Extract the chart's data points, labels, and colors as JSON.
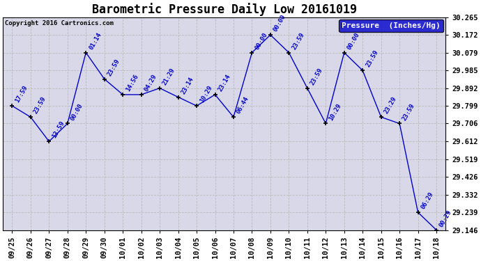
{
  "title": "Barometric Pressure Daily Low 20161019",
  "copyright": "Copyright 2016 Cartronics.com",
  "legend_label": "Pressure  (Inches/Hg)",
  "x_labels": [
    "09/25",
    "09/26",
    "09/27",
    "09/28",
    "09/29",
    "09/30",
    "10/01",
    "10/02",
    "10/03",
    "10/04",
    "10/05",
    "10/06",
    "10/07",
    "10/08",
    "10/09",
    "10/10",
    "10/11",
    "10/12",
    "10/13",
    "10/14",
    "10/15",
    "10/16",
    "10/17",
    "10/18"
  ],
  "y_values": [
    29.799,
    29.74,
    29.612,
    29.706,
    30.079,
    29.94,
    29.858,
    29.858,
    29.892,
    29.845,
    29.799,
    29.858,
    29.74,
    30.079,
    30.172,
    30.079,
    29.892,
    29.706,
    30.079,
    29.985,
    29.74,
    29.706,
    29.239,
    29.146
  ],
  "time_labels": [
    "17:59",
    "23:59",
    "13:59",
    "00:00",
    "01:14",
    "23:59",
    "14:56",
    "04:29",
    "21:29",
    "23:14",
    "10:29",
    "23:14",
    "06:44",
    "00:00",
    "00:00",
    "23:59",
    "23:59",
    "10:29",
    "00:00",
    "23:59",
    "23:29",
    "23:59",
    "06:29",
    "00:29"
  ],
  "line_color": "#0000CC",
  "marker_color": "#000000",
  "bg_color": "#FFFFFF",
  "plot_bg_color": "#D8D8E8",
  "grid_color": "#BBBBBB",
  "ylim_min": 29.146,
  "ylim_max": 30.265,
  "yticks": [
    29.146,
    29.239,
    29.332,
    29.426,
    29.519,
    29.612,
    29.706,
    29.799,
    29.892,
    29.985,
    30.079,
    30.172,
    30.265
  ],
  "title_fontsize": 12,
  "tick_fontsize": 7.5,
  "annotation_fontsize": 6.5,
  "legend_fontsize": 8,
  "copyright_fontsize": 6.5
}
